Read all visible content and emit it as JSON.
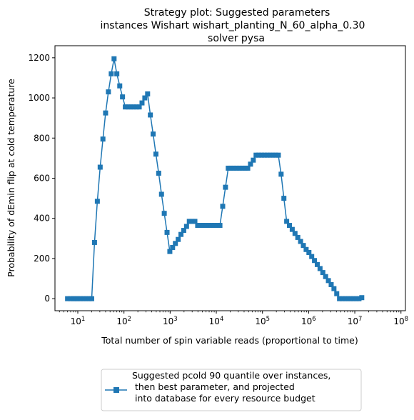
{
  "chart_data": {
    "type": "line",
    "title_lines": [
      "Strategy plot: Suggested parameters",
      "instances Wishart wishart_planting_N_60_alpha_0.30",
      "solver pysa"
    ],
    "xlabel": "Total number of spin variable reads (proportional to time)",
    "ylabel": "Probability of dEmin flip at cold temperature",
    "xscale": "log",
    "xlim": [
      3.2,
      125000000
    ],
    "ylim": [
      -60,
      1260
    ],
    "x_ticks": [
      {
        "value": 10,
        "base": "10",
        "exp": "1"
      },
      {
        "value": 100,
        "base": "10",
        "exp": "2"
      },
      {
        "value": 1000,
        "base": "10",
        "exp": "3"
      },
      {
        "value": 10000,
        "base": "10",
        "exp": "4"
      },
      {
        "value": 100000,
        "base": "10",
        "exp": "5"
      },
      {
        "value": 1000000,
        "base": "10",
        "exp": "6"
      },
      {
        "value": 10000000,
        "base": "10",
        "exp": "7"
      },
      {
        "value": 100000000,
        "base": "10",
        "exp": "8"
      }
    ],
    "y_ticks": [
      {
        "value": 0,
        "label": "0"
      },
      {
        "value": 200,
        "label": "200"
      },
      {
        "value": 400,
        "label": "400"
      },
      {
        "value": 600,
        "label": "600"
      },
      {
        "value": 800,
        "label": "800"
      },
      {
        "value": 1000,
        "label": "1000"
      },
      {
        "value": 1200,
        "label": "1200"
      }
    ],
    "grid": false,
    "legend_placement": "below plot, centered",
    "series": [
      {
        "name": "Suggested pcold 90 quantile over instances,\n then best parameter, and projected\n into database for every resource budget",
        "color": "#1f77b4",
        "marker": "square",
        "points": [
          [
            6,
            0
          ],
          [
            7,
            0
          ],
          [
            8,
            0
          ],
          [
            9,
            0
          ],
          [
            10,
            0
          ],
          [
            11.5,
            0
          ],
          [
            13.2,
            0
          ],
          [
            15.2,
            0
          ],
          [
            17.5,
            0
          ],
          [
            20,
            0
          ],
          [
            23,
            280
          ],
          [
            26.5,
            485
          ],
          [
            30.5,
            655
          ],
          [
            35,
            795
          ],
          [
            40,
            925
          ],
          [
            46,
            1030
          ],
          [
            53,
            1120
          ],
          [
            61,
            1195
          ],
          [
            70,
            1120
          ],
          [
            81,
            1060
          ],
          [
            93,
            1005
          ],
          [
            107,
            955
          ],
          [
            123,
            955
          ],
          [
            141,
            955
          ],
          [
            162,
            955
          ],
          [
            186,
            955
          ],
          [
            214,
            955
          ],
          [
            246,
            975
          ],
          [
            283,
            1000
          ],
          [
            325,
            1020
          ],
          [
            373,
            915
          ],
          [
            428,
            820
          ],
          [
            492,
            720
          ],
          [
            565,
            625
          ],
          [
            650,
            520
          ],
          [
            746,
            425
          ],
          [
            857,
            330
          ],
          [
            985,
            235
          ],
          [
            1130,
            255
          ],
          [
            1300,
            275
          ],
          [
            1495,
            295
          ],
          [
            1717,
            320
          ],
          [
            1973,
            340
          ],
          [
            2266,
            360
          ],
          [
            2603,
            385
          ],
          [
            2991,
            385
          ],
          [
            3436,
            385
          ],
          [
            3948,
            365
          ],
          [
            4535,
            365
          ],
          [
            5210,
            365
          ],
          [
            5986,
            365
          ],
          [
            6876,
            365
          ],
          [
            7900,
            365
          ],
          [
            9075,
            365
          ],
          [
            10425,
            365
          ],
          [
            11976,
            365
          ],
          [
            13760,
            460
          ],
          [
            15807,
            555
          ],
          [
            18160,
            650
          ],
          [
            20862,
            650
          ],
          [
            23966,
            650
          ],
          [
            27532,
            650
          ],
          [
            31629,
            650
          ],
          [
            36336,
            650
          ],
          [
            41743,
            650
          ],
          [
            47955,
            650
          ],
          [
            55090,
            670
          ],
          [
            63290,
            690
          ],
          [
            72710,
            715
          ],
          [
            83530,
            715
          ],
          [
            95960,
            715
          ],
          [
            110240,
            715
          ],
          [
            126640,
            715
          ],
          [
            145490,
            715
          ],
          [
            167140,
            715
          ],
          [
            192010,
            715
          ],
          [
            220580,
            715
          ],
          [
            253400,
            620
          ],
          [
            291100,
            500
          ],
          [
            334400,
            385
          ],
          [
            384200,
            365
          ],
          [
            441400,
            345
          ],
          [
            507000,
            325
          ],
          [
            582500,
            305
          ],
          [
            669200,
            285
          ],
          [
            768800,
            265
          ],
          [
            883200,
            245
          ],
          [
            1014600,
            230
          ],
          [
            1165600,
            210
          ],
          [
            1339000,
            190
          ],
          [
            1538300,
            170
          ],
          [
            1767200,
            150
          ],
          [
            2030100,
            130
          ],
          [
            2332200,
            110
          ],
          [
            2679300,
            90
          ],
          [
            3078000,
            70
          ],
          [
            3536000,
            50
          ],
          [
            4062000,
            25
          ],
          [
            4667000,
            0
          ],
          [
            5361000,
            0
          ],
          [
            6159000,
            0
          ],
          [
            7075000,
            0
          ],
          [
            8128000,
            0
          ],
          [
            9338000,
            0
          ],
          [
            10728000,
            0
          ],
          [
            12323000,
            0
          ],
          [
            14157000,
            5
          ]
        ]
      }
    ]
  }
}
